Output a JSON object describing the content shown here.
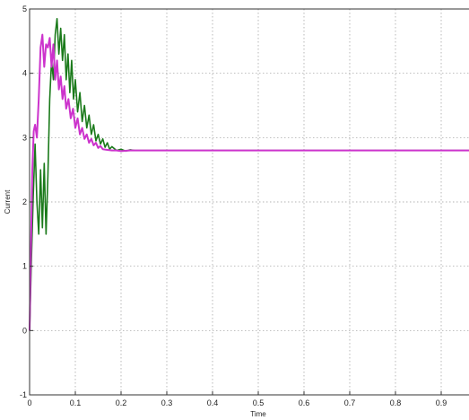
{
  "chart_data": {
    "type": "line",
    "title": "",
    "xlabel": "Time",
    "ylabel": "Current",
    "xlim": [
      0,
      1
    ],
    "ylim": [
      -1,
      5
    ],
    "grid": true,
    "legend": "none",
    "xticks": [
      "0",
      "0.1",
      "0.2",
      "0.3",
      "0.4",
      "0.5",
      "0.6",
      "0.7",
      "0.8",
      "0.9"
    ],
    "xtick_values": [
      0,
      0.1,
      0.2,
      0.3,
      0.4,
      0.5,
      0.6,
      0.7,
      0.8,
      0.9
    ],
    "yticks": [
      "-1",
      "0",
      "1",
      "2",
      "3",
      "4",
      "5"
    ],
    "ytick_values": [
      -1,
      0,
      1,
      2,
      3,
      4,
      5
    ],
    "series": [
      {
        "color": "#1a7a1a",
        "x": [
          0,
          0.004,
          0.008,
          0.012,
          0.016,
          0.02,
          0.024,
          0.028,
          0.032,
          0.036,
          0.04,
          0.044,
          0.048,
          0.052,
          0.056,
          0.06,
          0.064,
          0.068,
          0.072,
          0.076,
          0.08,
          0.084,
          0.088,
          0.092,
          0.096,
          0.1,
          0.105,
          0.11,
          0.115,
          0.12,
          0.125,
          0.13,
          0.135,
          0.14,
          0.145,
          0.15,
          0.155,
          0.16,
          0.165,
          0.17,
          0.175,
          0.18,
          0.19,
          0.2,
          0.21,
          0.22,
          0.23,
          0.24,
          0.26,
          0.3,
          0.4,
          0.5,
          0.6,
          0.7,
          0.8,
          0.9,
          1.0
        ],
        "y": [
          0,
          1.1,
          2.1,
          2.9,
          2.0,
          1.5,
          2.5,
          1.6,
          2.6,
          1.5,
          2.4,
          3.6,
          4.2,
          3.9,
          4.6,
          4.85,
          4.3,
          4.7,
          4.2,
          4.6,
          3.9,
          4.3,
          3.7,
          4.2,
          3.6,
          3.9,
          3.4,
          3.7,
          3.25,
          3.5,
          3.15,
          3.35,
          3.05,
          3.2,
          2.95,
          3.05,
          2.9,
          2.98,
          2.85,
          2.92,
          2.82,
          2.86,
          2.8,
          2.82,
          2.79,
          2.81,
          2.8,
          2.8,
          2.8,
          2.8,
          2.8,
          2.8,
          2.8,
          2.8,
          2.8,
          2.8,
          2.8
        ]
      },
      {
        "color": "#cc33cc",
        "x": [
          0,
          0.003,
          0.006,
          0.009,
          0.012,
          0.016,
          0.02,
          0.024,
          0.028,
          0.032,
          0.036,
          0.04,
          0.044,
          0.048,
          0.052,
          0.056,
          0.06,
          0.064,
          0.068,
          0.072,
          0.076,
          0.08,
          0.085,
          0.09,
          0.095,
          0.1,
          0.105,
          0.11,
          0.115,
          0.12,
          0.125,
          0.13,
          0.135,
          0.14,
          0.145,
          0.15,
          0.155,
          0.16,
          0.17,
          0.18,
          0.19,
          0.2,
          0.22,
          0.24,
          0.3,
          0.4,
          0.5,
          0.6,
          0.7,
          0.8,
          0.9,
          1.0
        ],
        "y": [
          0,
          1.3,
          2.5,
          3.1,
          3.2,
          3.0,
          3.6,
          4.4,
          4.6,
          4.1,
          4.45,
          4.4,
          4.55,
          4.1,
          4.45,
          3.9,
          4.2,
          3.75,
          3.95,
          3.6,
          3.8,
          3.45,
          3.6,
          3.3,
          3.45,
          3.15,
          3.3,
          3.05,
          3.15,
          2.98,
          3.05,
          2.92,
          2.98,
          2.88,
          2.92,
          2.84,
          2.87,
          2.82,
          2.81,
          2.8,
          2.8,
          2.79,
          2.8,
          2.8,
          2.8,
          2.8,
          2.8,
          2.8,
          2.8,
          2.8,
          2.8,
          2.8
        ]
      }
    ]
  }
}
